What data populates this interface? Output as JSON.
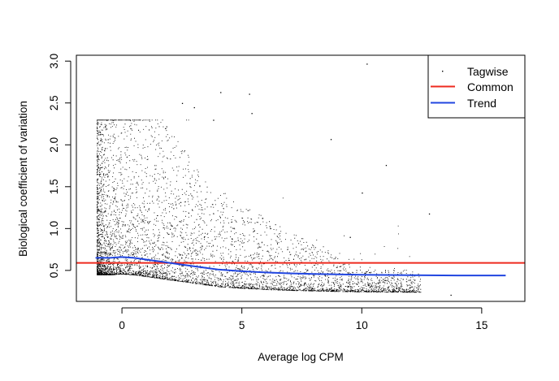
{
  "chart_data": {
    "type": "scatter",
    "title": "",
    "xlabel": "Average log CPM",
    "ylabel": "Biological coefficient of variation",
    "xlim": [
      -1.9,
      16.8
    ],
    "ylim": [
      0.13,
      3.07
    ],
    "x_ticks": [
      0,
      5,
      10,
      15
    ],
    "x_tick_labels": [
      "0",
      "5",
      "10",
      "15"
    ],
    "y_ticks": [
      0.5,
      1.0,
      1.5,
      2.0,
      2.5,
      3.0
    ],
    "y_tick_labels": [
      "0.5",
      "1.0",
      "1.5",
      "2.0",
      "2.5",
      "3.0"
    ],
    "grid": false,
    "legend_position": "top-right",
    "series": [
      {
        "name": "Tagwise",
        "kind": "points",
        "color": "#000000",
        "points": [
          [
            10.2,
            2.97
          ],
          [
            5.3,
            2.61
          ],
          [
            4.1,
            2.63
          ],
          [
            2.5,
            2.5
          ],
          [
            3.0,
            2.45
          ],
          [
            5.4,
            2.38
          ],
          [
            8.7,
            2.07
          ],
          [
            12.8,
            1.18
          ],
          [
            10.0,
            1.43
          ],
          [
            11.0,
            1.76
          ],
          [
            13.7,
            0.21
          ],
          [
            12.0,
            0.3
          ],
          [
            9.5,
            0.9
          ],
          [
            3.8,
            2.3
          ],
          [
            1.8,
            2.2
          ]
        ]
      },
      {
        "name": "Common",
        "kind": "hline",
        "color": "#ee2a1f",
        "value": 0.59
      },
      {
        "name": "Trend",
        "kind": "line",
        "color": "#2146e0",
        "x": [
          -1.1,
          -0.5,
          0,
          0.5,
          1,
          1.5,
          2,
          2.5,
          3,
          3.5,
          4,
          5,
          6,
          7,
          8,
          9,
          10,
          12,
          14,
          16
        ],
        "y": [
          0.65,
          0.65,
          0.66,
          0.65,
          0.63,
          0.61,
          0.59,
          0.57,
          0.55,
          0.53,
          0.51,
          0.49,
          0.475,
          0.465,
          0.458,
          0.452,
          0.448,
          0.443,
          0.44,
          0.44
        ]
      }
    ]
  }
}
